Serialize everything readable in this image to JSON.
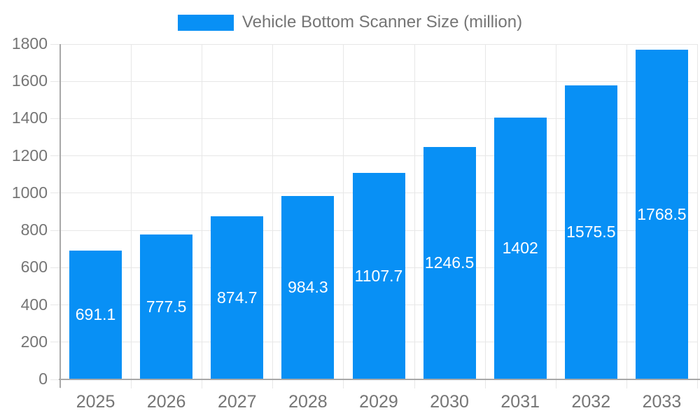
{
  "legend": {
    "label": "Vehicle Bottom Scanner Size (million)"
  },
  "colors": {
    "bar": "#0890f5",
    "grid": "#e7e7e7",
    "axis": "#a8a8a8",
    "tick_label": "#757575",
    "value_label": "#ffffff",
    "background": "#ffffff"
  },
  "chart_data": {
    "type": "bar",
    "title": "Vehicle Bottom Scanner Size (million)",
    "categories": [
      "2025",
      "2026",
      "2027",
      "2028",
      "2029",
      "2030",
      "2031",
      "2032",
      "2033"
    ],
    "values": [
      691.1,
      777.5,
      874.7,
      984.3,
      1107.7,
      1246.5,
      1402,
      1575.5,
      1768.5
    ],
    "value_labels": [
      "691.1",
      "777.5",
      "874.7",
      "984.3",
      "1107.7",
      "1246.5",
      "1402",
      "1575.5",
      "1768.5"
    ],
    "xlabel": "",
    "ylabel": "",
    "ylim": [
      0,
      1800
    ],
    "yticks": [
      0,
      200,
      400,
      600,
      800,
      1000,
      1200,
      1400,
      1600,
      1800
    ],
    "grid": true,
    "legend_position": "top-center",
    "value_label_position": "inside-center"
  }
}
